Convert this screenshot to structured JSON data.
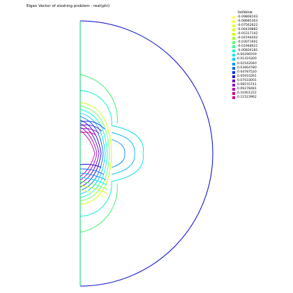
{
  "title": "Eigen Vector of sloshing problem : real(phi)",
  "legend": {
    "title": "IsoValue",
    "items": [
      {
        "label": "-0.09808103",
        "color": "#ffff66"
      },
      {
        "label": "-0.08685363",
        "color": "#f2ff4d"
      },
      {
        "label": "-0.07562622",
        "color": "#e6ff33"
      },
      {
        "label": "-0.06439882",
        "color": "#d9ff1a"
      },
      {
        "label": "-0.05317142",
        "color": "#ccff00"
      },
      {
        "label": "-0.04194402",
        "color": "#99ff33"
      },
      {
        "label": "-0.03071661",
        "color": "#66ff66"
      },
      {
        "label": "-0.01948921",
        "color": "#33ff99"
      },
      {
        "label": "-0.00826181",
        "color": "#00ffcc"
      },
      {
        "label": "0.00296559",
        "color": "#00eeee"
      },
      {
        "label": "0.01419300",
        "color": "#00ccff"
      },
      {
        "label": "0.02542040",
        "color": "#0099ff"
      },
      {
        "label": "0.03664780",
        "color": "#0066ff"
      },
      {
        "label": "0.04787520",
        "color": "#0033ee"
      },
      {
        "label": "0.05910261",
        "color": "#2200cc"
      },
      {
        "label": "0.07033001",
        "color": "#6600cc"
      },
      {
        "label": "0.08155741",
        "color": "#9900cc"
      },
      {
        "label": "0.09278481",
        "color": "#bb00bb"
      },
      {
        "label": "0.10401222",
        "color": "#cc0099"
      },
      {
        "label": "0.11523962",
        "color": "#dd0088"
      }
    ]
  },
  "colors": {
    "boundary_arc": "#0000cc",
    "boundary_axis": "#00cc66",
    "background": "#ffffff"
  }
}
